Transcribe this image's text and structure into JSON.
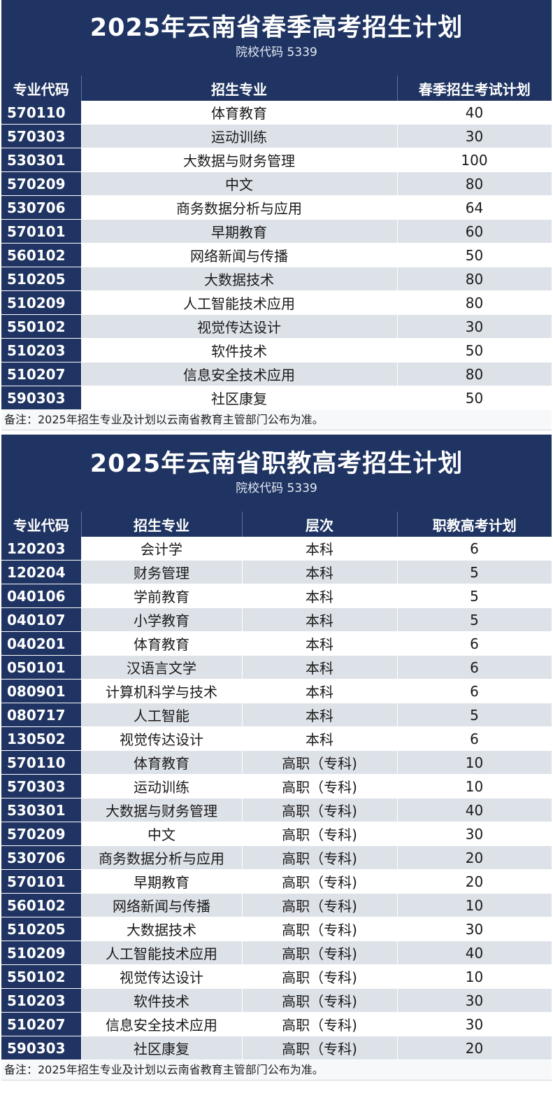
{
  "spring": {
    "title": "2025年云南省春季高考招生计划",
    "subtitle": "院校代码 5339",
    "headers": [
      "专业代码",
      "招生专业",
      "春季招生考试计划"
    ],
    "rows": [
      [
        "570110",
        "体育教育",
        "40"
      ],
      [
        "570303",
        "运动训练",
        "30"
      ],
      [
        "530301",
        "大数据与财务管理",
        "100"
      ],
      [
        "570209",
        "中文",
        "80"
      ],
      [
        "530706",
        "商务数据分析与应用",
        "64"
      ],
      [
        "570101",
        "早期教育",
        "60"
      ],
      [
        "560102",
        "网络新闻与传播",
        "50"
      ],
      [
        "510205",
        "大数据技术",
        "80"
      ],
      [
        "510209",
        "人工智能技术应用",
        "80"
      ],
      [
        "550102",
        "视觉传达设计",
        "30"
      ],
      [
        "510203",
        "软件技术",
        "50"
      ],
      [
        "510207",
        "信息安全技术应用",
        "80"
      ],
      [
        "590303",
        "社区康复",
        "50"
      ]
    ],
    "note": "备注：2025年招生专业及计划以云南省教育主管部门公布为准。"
  },
  "vocational": {
    "title": "2025年云南省职教高考招生计划",
    "subtitle": "院校代码 5339",
    "headers": [
      "专业代码",
      "招生专业",
      "层次",
      "职教高考计划"
    ],
    "rows": [
      [
        "120203",
        "会计学",
        "本科",
        "6"
      ],
      [
        "120204",
        "财务管理",
        "本科",
        "5"
      ],
      [
        "040106",
        "学前教育",
        "本科",
        "5"
      ],
      [
        "040107",
        "小学教育",
        "本科",
        "5"
      ],
      [
        "040201",
        "体育教育",
        "本科",
        "6"
      ],
      [
        "050101",
        "汉语言文学",
        "本科",
        "6"
      ],
      [
        "080901",
        "计算机科学与技术",
        "本科",
        "6"
      ],
      [
        "080717",
        "人工智能",
        "本科",
        "5"
      ],
      [
        "130502",
        "视觉传达设计",
        "本科",
        "6"
      ],
      [
        "570110",
        "体育教育",
        "高职（专科)",
        "10"
      ],
      [
        "570303",
        "运动训练",
        "高职（专科)",
        "10"
      ],
      [
        "530301",
        "大数据与财务管理",
        "高职（专科)",
        "40"
      ],
      [
        "570209",
        "中文",
        "高职（专科)",
        "30"
      ],
      [
        "530706",
        "商务数据分析与应用",
        "高职（专科)",
        "20"
      ],
      [
        "570101",
        "早期教育",
        "高职（专科)",
        "20"
      ],
      [
        "560102",
        "网络新闻与传播",
        "高职（专科)",
        "10"
      ],
      [
        "510205",
        "大数据技术",
        "高职（专科)",
        "30"
      ],
      [
        "510209",
        "人工智能技术应用",
        "高职（专科)",
        "40"
      ],
      [
        "550102",
        "视觉传达设计",
        "高职（专科)",
        "10"
      ],
      [
        "510203",
        "软件技术",
        "高职（专科)",
        "30"
      ],
      [
        "510207",
        "信息安全技术应用",
        "高职（专科)",
        "30"
      ],
      [
        "590303",
        "社区康复",
        "高职（专科)",
        "20"
      ]
    ],
    "note": "备注：2025年招生专业及计划以云南省教育主管部门公布为准。"
  }
}
